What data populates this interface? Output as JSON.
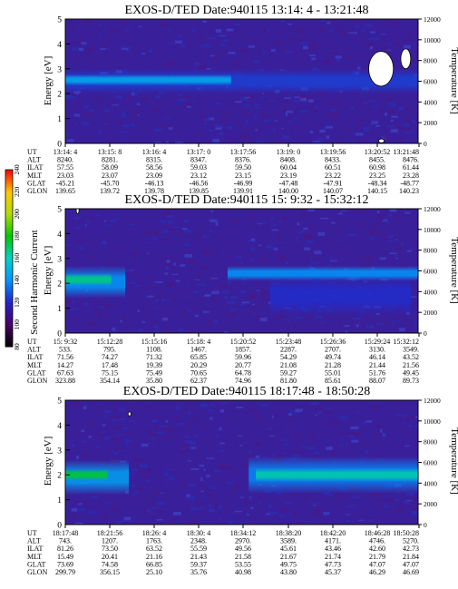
{
  "chart_data": [
    {
      "type": "heatmap",
      "title": "EXOS-D/TED   Date:940115   13:14: 4 - 13:21:48",
      "ylabel": "Energy [eV]",
      "y2label": "Temperature [K]",
      "ylim": [
        0,
        5
      ],
      "y2lim": [
        0,
        12000
      ],
      "yticks": [
        "0",
        "1",
        "2",
        "3",
        "4",
        "5"
      ],
      "y2ticks": [
        "0",
        "2000",
        "4000",
        "6000",
        "8000",
        "10000",
        "12000"
      ],
      "table": {
        "labels": [
          "UT",
          "ALT",
          "ILAT",
          "MLT",
          "GLAT",
          "GLON"
        ],
        "columns": [
          [
            "13:14: 4",
            "8240.",
            "57.55",
            "23.03",
            "-45.21",
            "139.65"
          ],
          [
            "13:15: 8",
            "8281.",
            "58.09",
            "23.07",
            "-45.70",
            "139.72"
          ],
          [
            "13:16: 4",
            "8315.",
            "58.56",
            "23.09",
            "-46.13",
            "139.78"
          ],
          [
            "13:17: 0",
            "8347.",
            "59.03",
            "23.12",
            "-46.56",
            "139.85"
          ],
          [
            "13:17:56",
            "8376.",
            "59.50",
            "23.15",
            "-46.99",
            "139.91"
          ],
          [
            "13:19: 0",
            "8408.",
            "60.04",
            "23.19",
            "-47.48",
            "140.00"
          ],
          [
            "13:19:56",
            "8433.",
            "60.51",
            "23.22",
            "-47.91",
            "140.07"
          ],
          [
            "13:20:52",
            "8455.",
            "60.98",
            "23.25",
            "-48.34",
            "140.15"
          ],
          [
            "13:21:48",
            "8476.",
            "61.44",
            "23.28",
            "-48.77",
            "140.23"
          ]
        ]
      },
      "features": [
        {
          "t0": 0.0,
          "t1": 0.47,
          "y": 2.55,
          "w": 0.45,
          "level": 0.42
        },
        {
          "t0": 0.0,
          "t1": 1.0,
          "y": 2.5,
          "w": 1.0,
          "level": 0.28
        }
      ],
      "white_patches": [
        {
          "t": 0.895,
          "y": 3.0,
          "dt": 0.035,
          "dy": 0.7
        },
        {
          "t": 0.965,
          "y": 3.4,
          "dt": 0.014,
          "dy": 0.4
        },
        {
          "t": 0.896,
          "y": 0.1,
          "dt": 0.008,
          "dy": 0.08
        }
      ]
    },
    {
      "type": "heatmap",
      "title": "EXOS-D/TED   Date:940115   15: 9:32 - 15:32:12",
      "ylabel": "Energy [eV]",
      "y2label": "Temperature [K]",
      "ylim": [
        0,
        5
      ],
      "y2lim": [
        0,
        12000
      ],
      "yticks": [
        "0",
        "1",
        "2",
        "3",
        "4",
        "5"
      ],
      "y2ticks": [
        "0",
        "2000",
        "4000",
        "6000",
        "8000",
        "10000",
        "12000"
      ],
      "table": {
        "labels": [
          "UT",
          "ALT",
          "ILAT",
          "MLT",
          "GLAT",
          "GLON"
        ],
        "columns": [
          [
            "15: 9:32",
            "533.",
            "71.56",
            "14.27",
            "67.63",
            "323.88"
          ],
          [
            "15:12:28",
            "795.",
            "74.27",
            "17.48",
            "75.15",
            "354.14"
          ],
          [
            "15:15:16",
            "1108.",
            "71.32",
            "19.39",
            "75.49",
            "35.80"
          ],
          [
            "15:18: 4",
            "1467.",
            "65.85",
            "20.29",
            "70.65",
            "62.37"
          ],
          [
            "15:20:52",
            "1857.",
            "59.96",
            "20.77",
            "64.78",
            "74.96"
          ],
          [
            "15:23:48",
            "2287.",
            "54.29",
            "21.08",
            "59.27",
            "81.80"
          ],
          [
            "15:26:36",
            "2707.",
            "49.74",
            "21.28",
            "55.01",
            "85.61"
          ],
          [
            "15:29:24",
            "3130.",
            "46.14",
            "21.44",
            "51.76",
            "88.07"
          ],
          [
            "15:32:12",
            "3549.",
            "43.52",
            "21.56",
            "49.45",
            "89.73"
          ]
        ]
      },
      "features": [
        {
          "t0": 0.0,
          "t1": 0.13,
          "y": 2.15,
          "w": 0.5,
          "level": 0.55
        },
        {
          "t0": 0.0,
          "t1": 0.17,
          "y": 2.05,
          "w": 1.3,
          "level": 0.38
        },
        {
          "t0": 0.46,
          "t1": 1.0,
          "y": 2.4,
          "w": 0.6,
          "level": 0.38
        },
        {
          "t0": 0.58,
          "t1": 0.98,
          "y": 1.5,
          "w": 1.6,
          "level": 0.26
        }
      ],
      "white_patches": [
        {
          "t": 0.035,
          "y": 4.95,
          "dt": 0.004,
          "dy": 0.15
        }
      ]
    },
    {
      "type": "heatmap",
      "title": "EXOS-D/TED   Date:940115   18:17:48 - 18:50:28",
      "ylabel": "Energy [eV]",
      "y2label": "Temperature [K]",
      "ylim": [
        0,
        5
      ],
      "y2lim": [
        0,
        12000
      ],
      "yticks": [
        "0",
        "1",
        "2",
        "3",
        "4",
        "5"
      ],
      "y2ticks": [
        "0",
        "2000",
        "4000",
        "6000",
        "8000",
        "10000",
        "12000"
      ],
      "table": {
        "labels": [
          "UT",
          "ALT",
          "ILAT",
          "MLT",
          "GLAT",
          "GLON"
        ],
        "columns": [
          [
            "18:17:48",
            "743.",
            "81.26",
            "15.49",
            "73.69",
            "299.79"
          ],
          [
            "18:21:56",
            "1207.",
            "73.50",
            "20.41",
            "74.58",
            "356.15"
          ],
          [
            "18:26: 4",
            "1763.",
            "63.52",
            "21.16",
            "66.85",
            "25.10"
          ],
          [
            "18:30: 4",
            "2348.",
            "55.59",
            "21.43",
            "59.37",
            "35.76"
          ],
          [
            "18:34:12",
            "2970.",
            "49.56",
            "21.58",
            "53.55",
            "40.98"
          ],
          [
            "18:38:20",
            "3589.",
            "45.61",
            "21.67",
            "49.75",
            "43.80"
          ],
          [
            "18:42:20",
            "4171.",
            "43.46",
            "21.74",
            "47.73",
            "45.37"
          ],
          [
            "18:46:28",
            "4746.",
            "42.60",
            "21.79",
            "47.07",
            "46.29"
          ],
          [
            "18:50:28",
            "5270.",
            "42.73",
            "21.84",
            "47.07",
            "46.69"
          ]
        ]
      },
      "features": [
        {
          "t0": 0.0,
          "t1": 0.12,
          "y": 2.0,
          "w": 0.45,
          "level": 0.6
        },
        {
          "t0": 0.0,
          "t1": 0.18,
          "y": 1.9,
          "w": 1.4,
          "level": 0.4
        },
        {
          "t0": 0.54,
          "t1": 1.0,
          "y": 2.0,
          "w": 0.55,
          "level": 0.52
        },
        {
          "t0": 0.52,
          "t1": 1.0,
          "y": 2.0,
          "w": 1.5,
          "level": 0.36
        }
      ],
      "white_patches": [
        {
          "t": 0.182,
          "y": 4.45,
          "dt": 0.004,
          "dy": 0.08
        }
      ]
    }
  ],
  "colorbar": {
    "label": "Second Harmonic Current",
    "ticks": [
      "80",
      "100",
      "120",
      "140",
      "160",
      "180",
      "200",
      "220",
      "240"
    ],
    "colors": [
      "#000000",
      "#4b0066",
      "#2323c8",
      "#0096ff",
      "#00d2c8",
      "#00c800",
      "#b4dc00",
      "#ffc800",
      "#ff0000"
    ]
  }
}
